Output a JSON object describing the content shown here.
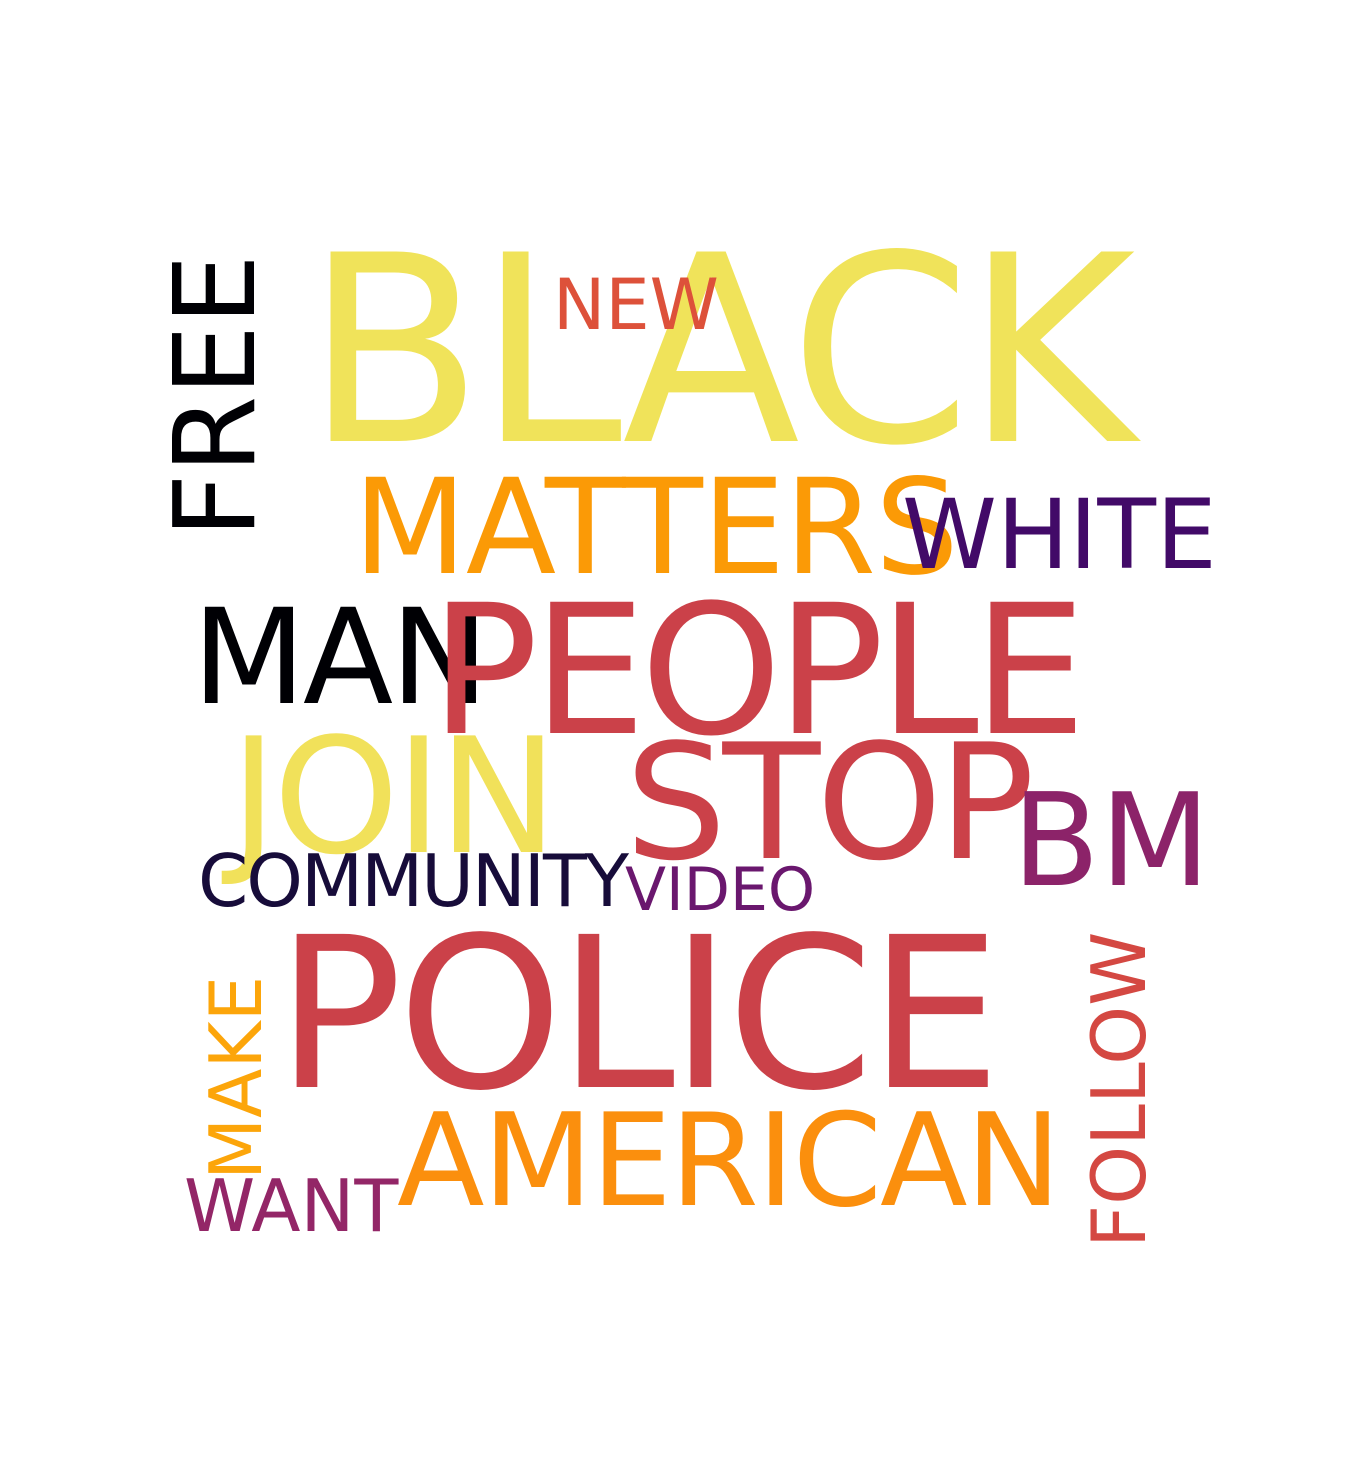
{
  "words": {
    "black": {
      "text": "BLACK",
      "color": "#f0e35a"
    },
    "new": {
      "text": "NEW",
      "color": "#dd513a"
    },
    "matters": {
      "text": "MATTERS",
      "color": "#fb9a06"
    },
    "white": {
      "text": "WHITE",
      "color": "#420a68"
    },
    "free": {
      "text": "FREE",
      "color": "#000004"
    },
    "man": {
      "text": "MAN",
      "color": "#000004"
    },
    "people": {
      "text": "PEOPLE",
      "color": "#cb4149"
    },
    "join": {
      "text": "JOIN",
      "color": "#f1e15a"
    },
    "stop": {
      "text": "STOP",
      "color": "#cb4149"
    },
    "bm": {
      "text": "BM",
      "color": "#8c2369"
    },
    "community": {
      "text": "COMMUNITY",
      "color": "#170c3a"
    },
    "video": {
      "text": "VIDEO",
      "color": "#6a176e"
    },
    "police": {
      "text": "POLICE",
      "color": "#cb4149"
    },
    "make": {
      "text": "MAKE",
      "color": "#fca50a"
    },
    "american": {
      "text": "AMERICAN",
      "color": "#fb8f0d"
    },
    "want": {
      "text": "WANT",
      "color": "#932667"
    },
    "follow": {
      "text": "FOLLOW",
      "color": "#d44842"
    }
  }
}
